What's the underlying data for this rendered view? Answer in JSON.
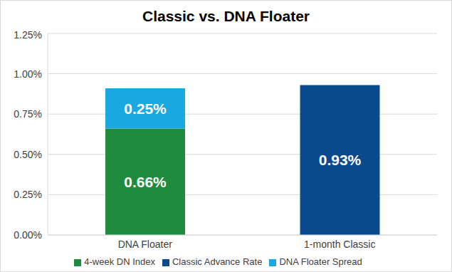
{
  "chart_data": {
    "type": "bar",
    "title": "Classic vs. DNA Floater",
    "categories": [
      "DNA Floater",
      "1-month Classic"
    ],
    "series": [
      {
        "name": "4-week DN Index",
        "color": "#1e8b3f",
        "values": [
          0.66,
          null
        ],
        "value_labels": [
          "0.66%",
          null
        ]
      },
      {
        "name": "DNA Floater Spread",
        "color": "#1aa8e0",
        "values": [
          0.25,
          null
        ],
        "value_labels": [
          "0.25%",
          null
        ]
      },
      {
        "name": "Classic Advance Rate",
        "color": "#0b4a8c",
        "values": [
          null,
          0.93
        ],
        "value_labels": [
          null,
          "0.93%"
        ]
      }
    ],
    "stacked": true,
    "data_labels": true,
    "ylim": [
      0,
      1.25
    ],
    "yticks": [
      {
        "value": 0,
        "label": "0.00%"
      },
      {
        "value": 0.25,
        "label": "0.25%"
      },
      {
        "value": 0.5,
        "label": "0.50%"
      },
      {
        "value": 0.75,
        "label": "0.75%"
      },
      {
        "value": 1.0,
        "label": "1.00%"
      },
      {
        "value": 1.25,
        "label": "1.25%"
      }
    ],
    "grid": true,
    "legend": "bottom"
  }
}
